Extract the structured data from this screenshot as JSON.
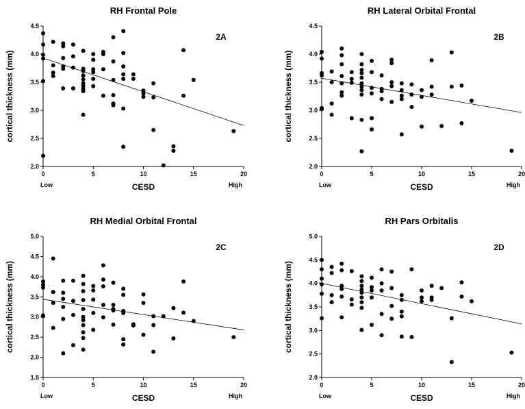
{
  "chart_data": [
    {
      "type": "scatter",
      "title": "RH Frontal Pole",
      "panel_label": "2A",
      "xlabel": "CESD",
      "ylabel": "cortical thickness (mm)",
      "xlim": [
        0,
        20
      ],
      "ylim": [
        2.0,
        4.5
      ],
      "x_ticks": [
        "0",
        "5",
        "10",
        "15",
        "20"
      ],
      "y_ticks": [
        "2.0",
        "2.5",
        "3.0",
        "3.5",
        "4.0",
        "4.5"
      ],
      "x_low_label": "Low",
      "x_high_label": "High",
      "grid": false,
      "legend": "none",
      "trendline": {
        "x": [
          0,
          20
        ],
        "y": [
          3.93,
          2.73
        ]
      },
      "points": [
        [
          0,
          4.37
        ],
        [
          0,
          4.17
        ],
        [
          0,
          3.99
        ],
        [
          0,
          3.92
        ],
        [
          0,
          3.52
        ],
        [
          0,
          2.19
        ],
        [
          1,
          4.22
        ],
        [
          1,
          3.8
        ],
        [
          1,
          3.67
        ],
        [
          1,
          3.61
        ],
        [
          2,
          4.19
        ],
        [
          2,
          4.14
        ],
        [
          2,
          3.93
        ],
        [
          2,
          3.78
        ],
        [
          2,
          3.74
        ],
        [
          2,
          3.39
        ],
        [
          3,
          4.17
        ],
        [
          3,
          3.96
        ],
        [
          3,
          3.76
        ],
        [
          3,
          3.39
        ],
        [
          4,
          4.06
        ],
        [
          4,
          3.74
        ],
        [
          4,
          3.7
        ],
        [
          4,
          3.62
        ],
        [
          4,
          3.55
        ],
        [
          4,
          3.48
        ],
        [
          4,
          3.43
        ],
        [
          4,
          3.38
        ],
        [
          4,
          3.34
        ],
        [
          4,
          2.92
        ],
        [
          5,
          4.0
        ],
        [
          5,
          3.9
        ],
        [
          5,
          3.73
        ],
        [
          5,
          3.68
        ],
        [
          5,
          3.56
        ],
        [
          5,
          3.43
        ],
        [
          6,
          4.04
        ],
        [
          6,
          4.0
        ],
        [
          6,
          3.73
        ],
        [
          6,
          3.26
        ],
        [
          7,
          4.3
        ],
        [
          7,
          3.87
        ],
        [
          7,
          3.54
        ],
        [
          7,
          3.27
        ],
        [
          7,
          3.12
        ],
        [
          7,
          3.09
        ],
        [
          8,
          4.41
        ],
        [
          8,
          4.02
        ],
        [
          8,
          3.78
        ],
        [
          8,
          3.64
        ],
        [
          8,
          3.56
        ],
        [
          8,
          3.03
        ],
        [
          8,
          2.35
        ],
        [
          9,
          3.64
        ],
        [
          9,
          3.56
        ],
        [
          10,
          3.35
        ],
        [
          10,
          3.3
        ],
        [
          10,
          3.24
        ],
        [
          11,
          3.48
        ],
        [
          11,
          3.23
        ],
        [
          11,
          2.65
        ],
        [
          12,
          2.02
        ],
        [
          13,
          2.36
        ],
        [
          13,
          2.28
        ],
        [
          14,
          4.07
        ],
        [
          14,
          3.26
        ],
        [
          15,
          3.54
        ],
        [
          19,
          2.63
        ]
      ]
    },
    {
      "type": "scatter",
      "title": "RH Lateral Orbital Frontal",
      "panel_label": "2B",
      "xlabel": "CESD",
      "ylabel": "cortical thickness (mm)",
      "xlim": [
        0,
        20
      ],
      "ylim": [
        2.0,
        4.5
      ],
      "x_ticks": [
        "0",
        "5",
        "10",
        "15",
        "20"
      ],
      "y_ticks": [
        "2.0",
        "2.5",
        "3.0",
        "3.5",
        "4.0",
        "4.5"
      ],
      "x_low_label": "Low",
      "x_high_label": "High",
      "grid": false,
      "legend": "none",
      "trendline": {
        "x": [
          0,
          20
        ],
        "y": [
          3.57,
          2.96
        ]
      },
      "points": [
        [
          0,
          4.04
        ],
        [
          0,
          3.92
        ],
        [
          0,
          3.66
        ],
        [
          0,
          3.62
        ],
        [
          0,
          3.04
        ],
        [
          0,
          3.02
        ],
        [
          1,
          3.69
        ],
        [
          1,
          3.5
        ],
        [
          1,
          3.12
        ],
        [
          1,
          2.92
        ],
        [
          2,
          4.1
        ],
        [
          2,
          3.98
        ],
        [
          2,
          3.82
        ],
        [
          2,
          3.61
        ],
        [
          2,
          3.48
        ],
        [
          2,
          3.32
        ],
        [
          2,
          3.26
        ],
        [
          3,
          3.68
        ],
        [
          3,
          3.56
        ],
        [
          3,
          3.49
        ],
        [
          3,
          2.86
        ],
        [
          4,
          4.0
        ],
        [
          4,
          3.82
        ],
        [
          4,
          3.72
        ],
        [
          4,
          3.66
        ],
        [
          4,
          3.58
        ],
        [
          4,
          3.48
        ],
        [
          4,
          3.42
        ],
        [
          4,
          3.36
        ],
        [
          4,
          3.28
        ],
        [
          4,
          2.83
        ],
        [
          4,
          2.27
        ],
        [
          5,
          3.88
        ],
        [
          5,
          3.68
        ],
        [
          5,
          3.4
        ],
        [
          5,
          3.3
        ],
        [
          5,
          2.86
        ],
        [
          5,
          2.66
        ],
        [
          6,
          3.62
        ],
        [
          6,
          3.38
        ],
        [
          6,
          3.34
        ],
        [
          6,
          3.2
        ],
        [
          7,
          3.9
        ],
        [
          7,
          3.84
        ],
        [
          7,
          3.5
        ],
        [
          7,
          3.43
        ],
        [
          7,
          3.15
        ],
        [
          8,
          3.48
        ],
        [
          8,
          3.36
        ],
        [
          8,
          3.26
        ],
        [
          8,
          3.2
        ],
        [
          8,
          2.57
        ],
        [
          9,
          3.46
        ],
        [
          9,
          3.28
        ],
        [
          9,
          3.06
        ],
        [
          10,
          3.36
        ],
        [
          10,
          3.24
        ],
        [
          10,
          2.71
        ],
        [
          11,
          3.89
        ],
        [
          11,
          3.42
        ],
        [
          11,
          3.28
        ],
        [
          12,
          2.72
        ],
        [
          13,
          4.03
        ],
        [
          13,
          3.42
        ],
        [
          14,
          3.44
        ],
        [
          14,
          2.77
        ],
        [
          15,
          3.17
        ],
        [
          19,
          2.28
        ]
      ]
    },
    {
      "type": "scatter",
      "title": "RH Medial Orbital Frontal",
      "panel_label": "2C",
      "xlabel": "CESD",
      "ylabel": "cortical thickness (mm)",
      "xlim": [
        0,
        20
      ],
      "ylim": [
        1.5,
        5.0
      ],
      "x_ticks": [
        "0",
        "5",
        "10",
        "15",
        "20"
      ],
      "y_ticks": [
        "1.5",
        "2.0",
        "2.5",
        "3.0",
        "3.5",
        "4.0",
        "4.5",
        "5.0"
      ],
      "x_low_label": "Low",
      "x_high_label": "High",
      "grid": false,
      "legend": "none",
      "trendline": {
        "x": [
          0,
          20
        ],
        "y": [
          3.44,
          2.68
        ]
      },
      "points": [
        [
          0,
          3.88
        ],
        [
          0,
          3.8
        ],
        [
          0,
          3.73
        ],
        [
          0,
          3.04
        ],
        [
          0,
          3.02
        ],
        [
          1,
          4.45
        ],
        [
          1,
          3.62
        ],
        [
          1,
          3.35
        ],
        [
          1,
          2.73
        ],
        [
          2,
          3.9
        ],
        [
          2,
          3.6
        ],
        [
          2,
          3.45
        ],
        [
          2,
          3.25
        ],
        [
          2,
          2.95
        ],
        [
          2,
          2.1
        ],
        [
          3,
          3.9
        ],
        [
          3,
          3.4
        ],
        [
          3,
          3.05
        ],
        [
          3,
          2.3
        ],
        [
          4,
          4.02
        ],
        [
          4,
          3.82
        ],
        [
          4,
          3.64
        ],
        [
          4,
          3.42
        ],
        [
          4,
          3.2
        ],
        [
          4,
          3.0
        ],
        [
          4,
          2.92
        ],
        [
          4,
          2.8
        ],
        [
          4,
          2.62
        ],
        [
          4,
          2.48
        ],
        [
          4,
          2.19
        ],
        [
          5,
          3.77
        ],
        [
          5,
          3.66
        ],
        [
          5,
          3.43
        ],
        [
          5,
          3.1
        ],
        [
          5,
          2.68
        ],
        [
          6,
          4.28
        ],
        [
          6,
          3.93
        ],
        [
          6,
          3.76
        ],
        [
          6,
          3.3
        ],
        [
          6,
          2.99
        ],
        [
          7,
          3.85
        ],
        [
          7,
          3.3
        ],
        [
          7,
          3.2
        ],
        [
          7,
          3.16
        ],
        [
          7,
          2.81
        ],
        [
          8,
          3.7
        ],
        [
          8,
          3.55
        ],
        [
          8,
          3.15
        ],
        [
          8,
          3.1
        ],
        [
          8,
          2.45
        ],
        [
          8,
          2.32
        ],
        [
          9,
          2.82
        ],
        [
          9,
          2.79
        ],
        [
          10,
          3.56
        ],
        [
          10,
          3.35
        ],
        [
          10,
          2.56
        ],
        [
          11,
          3.02
        ],
        [
          11,
          2.8
        ],
        [
          11,
          2.14
        ],
        [
          12,
          3.02
        ],
        [
          13,
          3.22
        ],
        [
          13,
          2.47
        ],
        [
          14,
          3.88
        ],
        [
          14,
          3.11
        ],
        [
          15,
          2.9
        ],
        [
          19,
          2.5
        ]
      ]
    },
    {
      "type": "scatter",
      "title": "RH Pars Orbitalis",
      "panel_label": "2D",
      "xlabel": "CESD",
      "ylabel": "cortical thickness (mm)",
      "xlim": [
        0,
        20
      ],
      "ylim": [
        2.0,
        5.0
      ],
      "x_ticks": [
        "0",
        "5",
        "10",
        "15",
        "20"
      ],
      "y_ticks": [
        "2.0",
        "2.5",
        "3.0",
        "3.5",
        "4.0",
        "4.5",
        "5.0"
      ],
      "x_low_label": "Low",
      "x_high_label": "High",
      "grid": false,
      "legend": "none",
      "trendline": {
        "x": [
          0,
          20
        ],
        "y": [
          4.0,
          3.14
        ]
      },
      "points": [
        [
          0,
          4.5
        ],
        [
          0,
          4.3
        ],
        [
          0,
          4.1
        ],
        [
          0,
          3.98
        ],
        [
          0,
          3.78
        ],
        [
          0,
          3.26
        ],
        [
          1,
          4.35
        ],
        [
          1,
          4.22
        ],
        [
          1,
          3.75
        ],
        [
          1,
          3.6
        ],
        [
          2,
          4.42
        ],
        [
          2,
          4.28
        ],
        [
          2,
          3.95
        ],
        [
          2,
          3.88
        ],
        [
          2,
          3.72
        ],
        [
          2,
          3.28
        ],
        [
          3,
          4.26
        ],
        [
          3,
          3.66
        ],
        [
          3,
          3.55
        ],
        [
          4,
          4.15
        ],
        [
          4,
          4.05
        ],
        [
          4,
          3.95
        ],
        [
          4,
          3.87
        ],
        [
          4,
          3.8
        ],
        [
          4,
          3.7
        ],
        [
          4,
          3.6
        ],
        [
          4,
          3.48
        ],
        [
          4,
          3.01
        ],
        [
          5,
          4.12
        ],
        [
          5,
          3.92
        ],
        [
          5,
          3.85
        ],
        [
          5,
          3.7
        ],
        [
          5,
          3.12
        ],
        [
          6,
          4.3
        ],
        [
          6,
          4.0
        ],
        [
          6,
          3.85
        ],
        [
          6,
          3.35
        ],
        [
          6,
          2.9
        ],
        [
          7,
          4.25
        ],
        [
          7,
          3.9
        ],
        [
          7,
          3.52
        ],
        [
          7,
          3.25
        ],
        [
          8,
          3.75
        ],
        [
          8,
          3.65
        ],
        [
          8,
          3.4
        ],
        [
          8,
          3.3
        ],
        [
          8,
          2.87
        ],
        [
          9,
          4.3
        ],
        [
          9,
          2.86
        ],
        [
          10,
          3.85
        ],
        [
          10,
          3.7
        ],
        [
          10,
          3.62
        ],
        [
          11,
          3.95
        ],
        [
          11,
          3.7
        ],
        [
          11,
          3.65
        ],
        [
          12,
          3.9
        ],
        [
          13,
          3.26
        ],
        [
          13,
          2.33
        ],
        [
          14,
          4.02
        ],
        [
          14,
          3.72
        ],
        [
          15,
          3.62
        ],
        [
          19,
          2.53
        ]
      ]
    }
  ]
}
